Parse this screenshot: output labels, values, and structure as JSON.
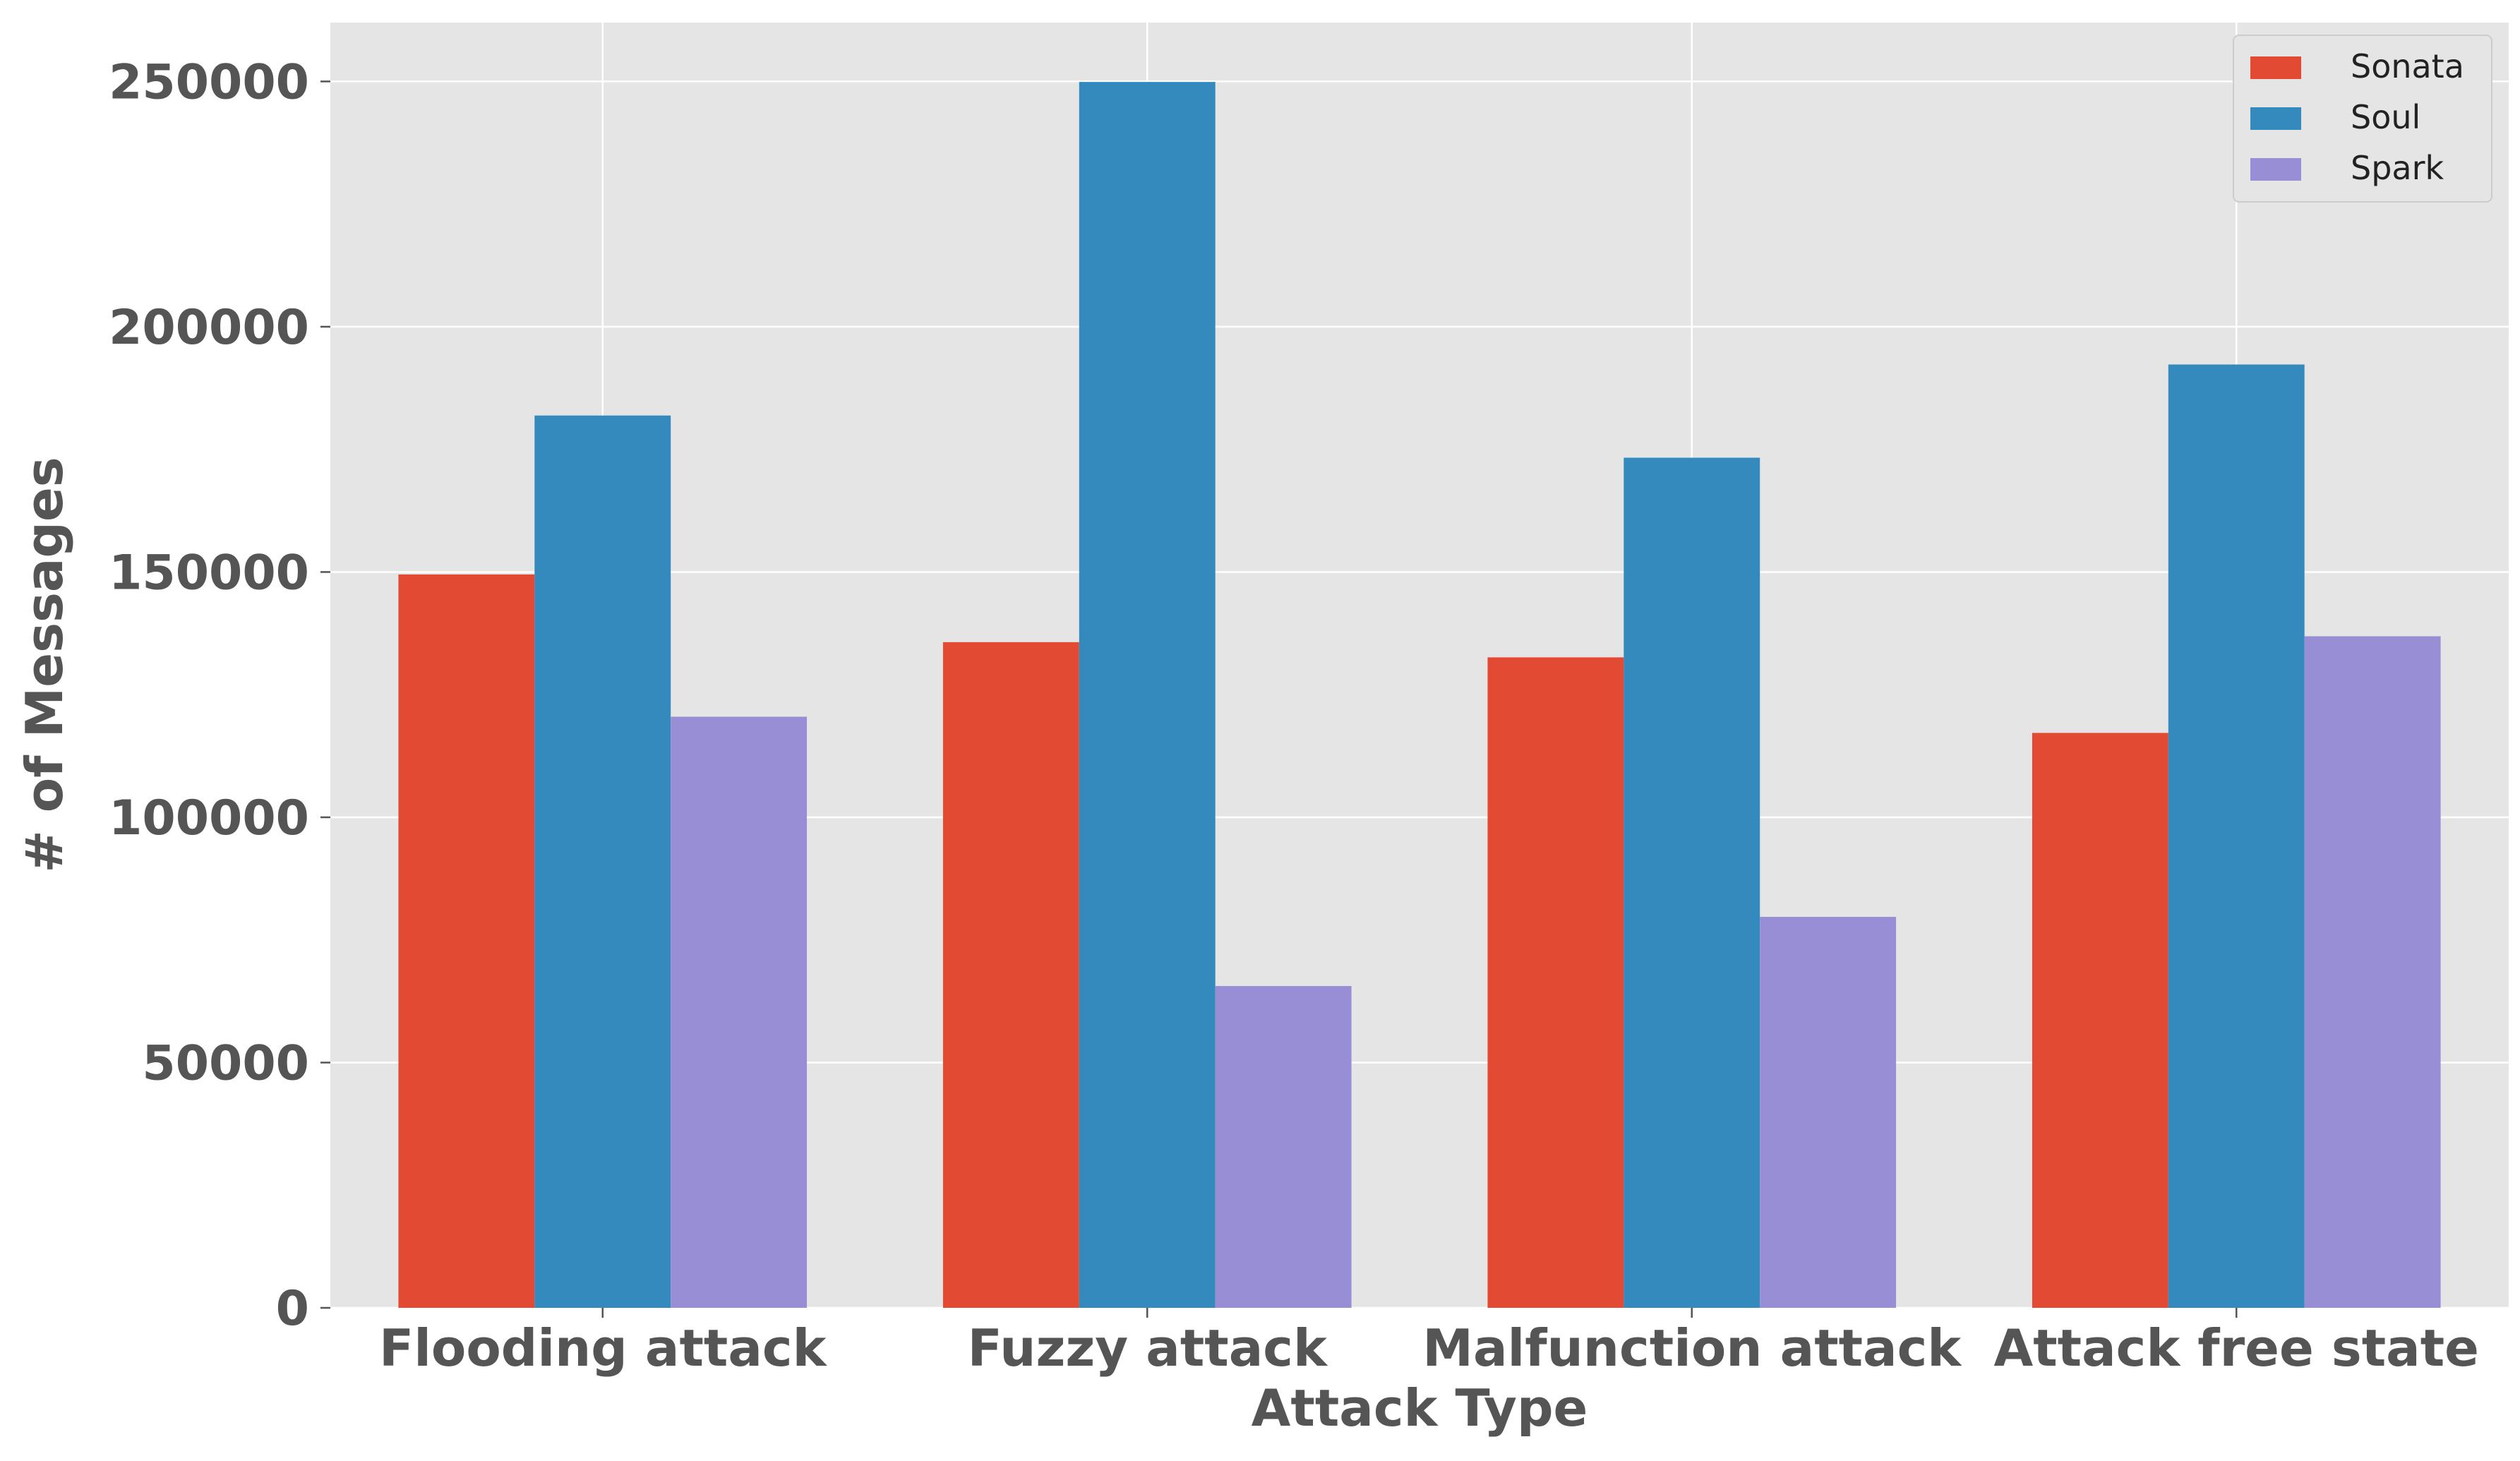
{
  "chart_data": {
    "type": "bar",
    "title": "",
    "xlabel": "Attack Type",
    "ylabel": "# of Messages",
    "categories": [
      "Flooding attack",
      "Fuzzy attack",
      "Malfunction attack",
      "Attack free state"
    ],
    "series": [
      {
        "name": "Sonata",
        "color": "#E24A33",
        "values": [
          149500,
          135700,
          132600,
          117200
        ]
      },
      {
        "name": "Soul",
        "color": "#348ABD",
        "values": [
          181900,
          249900,
          173300,
          192300
        ]
      },
      {
        "name": "Spark",
        "color": "#988ED5",
        "values": [
          120500,
          65600,
          79700,
          136900
        ]
      }
    ],
    "ylim": [
      0,
      262000
    ],
    "yticks": [
      0,
      50000,
      100000,
      150000,
      200000,
      250000
    ],
    "grid": true,
    "legend_position": "top-right",
    "style_colors": {
      "plot_background": "#E5E5E5",
      "grid": "#FFFFFF",
      "text": "#555555"
    }
  }
}
